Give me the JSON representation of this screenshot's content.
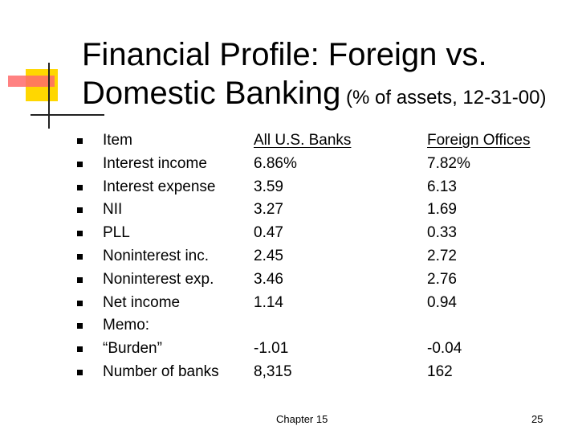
{
  "slide": {
    "title_line1": "Financial Profile:  Foreign vs.",
    "title_line2": "Domestic Banking",
    "title_suffix": " (% of assets, 12-31-00)",
    "colors": {
      "deco_yellow": "#ffd700",
      "deco_red": "#ff6b6b"
    }
  },
  "table": {
    "headers": [
      "Item",
      "All U.S. Banks",
      "Foreign Offices"
    ],
    "rows": [
      [
        "Interest income",
        "6.86%",
        "7.82%"
      ],
      [
        "Interest expense",
        "3.59",
        "6.13"
      ],
      [
        "NII",
        "3.27",
        "1.69"
      ],
      [
        "PLL",
        "0.47",
        "0.33"
      ],
      [
        "Noninterest inc.",
        "2.45",
        "2.72"
      ],
      [
        "Noninterest exp.",
        "3.46",
        "2.76"
      ],
      [
        "Net income",
        "1.14",
        "0.94"
      ],
      [
        "Memo:",
        "",
        ""
      ],
      [
        "“Burden”",
        "-1.01",
        "-0.04"
      ],
      [
        "Number of banks",
        "8,315",
        "162"
      ]
    ],
    "bullet_icon": "square-bullet-icon"
  },
  "footer": {
    "chapter": "Chapter 15",
    "page_number": "25"
  }
}
